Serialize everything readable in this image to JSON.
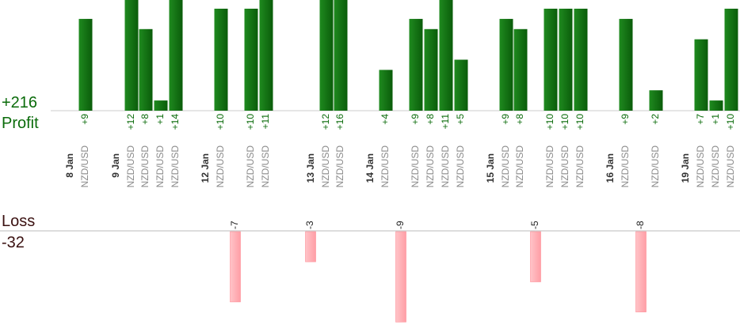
{
  "summary": {
    "profit_total": "+216",
    "profit_label": "Profit",
    "loss_label": "Loss",
    "loss_total": "-32"
  },
  "colors": {
    "profit_bar": "#0f6e0f",
    "profit_text": "#0a6b0a",
    "loss_bar": "#ffb3b8",
    "loss_text": "#3a1010",
    "date_text": "#333333",
    "pair_text": "#8a8a8a",
    "axis": "#bbbbbb"
  },
  "chart_data": {
    "type": "bar",
    "profit_series": {
      "name": "Profit",
      "ylim": [
        0,
        10
      ],
      "trades": [
        {
          "date": "8 Jan",
          "pair": "NZD/USD",
          "value": 9,
          "label": "+9"
        },
        {
          "date": "9 Jan",
          "pair": "NZD/USD",
          "value": 12,
          "label": "+12"
        },
        {
          "date": "",
          "pair": "NZD/USD",
          "value": 8,
          "label": "+8"
        },
        {
          "date": "",
          "pair": "NZD/USD",
          "value": 1,
          "label": "+1"
        },
        {
          "date": "",
          "pair": "NZD/USD",
          "value": 14,
          "label": "+14"
        },
        {
          "date": "12 Jan",
          "pair": "NZD/USD",
          "value": 10,
          "label": "+10"
        },
        {
          "date": "",
          "pair": "NZD/USD",
          "value": 10,
          "label": "+10"
        },
        {
          "date": "",
          "pair": "NZD/USD",
          "value": 11,
          "label": "+11"
        },
        {
          "date": "13 Jan",
          "pair": "NZD/USD",
          "value": 12,
          "label": "+12"
        },
        {
          "date": "",
          "pair": "NZD/USD",
          "value": 16,
          "label": "+16"
        },
        {
          "date": "14 Jan",
          "pair": "NZD/USD",
          "value": 4,
          "label": "+4"
        },
        {
          "date": "",
          "pair": "NZD/USD",
          "value": 9,
          "label": "+9"
        },
        {
          "date": "",
          "pair": "NZD/USD",
          "value": 8,
          "label": "+8"
        },
        {
          "date": "",
          "pair": "NZD/USD",
          "value": 11,
          "label": "+11"
        },
        {
          "date": "",
          "pair": "NZD/USD",
          "value": 5,
          "label": "+5"
        },
        {
          "date": "15 Jan",
          "pair": "NZD/USD",
          "value": 9,
          "label": "+9"
        },
        {
          "date": "",
          "pair": "NZD/USD",
          "value": 8,
          "label": "+8"
        },
        {
          "date": "",
          "pair": "NZD/USD",
          "value": 10,
          "label": "+10"
        },
        {
          "date": "",
          "pair": "NZD/USD",
          "value": 10,
          "label": "+10"
        },
        {
          "date": "",
          "pair": "NZD/USD",
          "value": 10,
          "label": "+10"
        },
        {
          "date": "16 Jan",
          "pair": "NZD/USD",
          "value": 9,
          "label": "+9"
        },
        {
          "date": "",
          "pair": "NZD/USD",
          "value": 2,
          "label": "+2"
        },
        {
          "date": "19 Jan",
          "pair": "NZD/USD",
          "value": 7,
          "label": "+7"
        },
        {
          "date": "",
          "pair": "NZD/USD",
          "value": 1,
          "label": "+1"
        },
        {
          "date": "",
          "pair": "NZD/USD",
          "value": 10,
          "label": "+10"
        }
      ]
    },
    "loss_series": {
      "name": "Loss",
      "ylim": [
        0,
        9
      ],
      "trades": [
        {
          "value": -7,
          "label": "-7"
        },
        {
          "value": -3,
          "label": "-3"
        },
        {
          "value": -9,
          "label": "-9"
        },
        {
          "value": -5,
          "label": "-5"
        },
        {
          "value": -8,
          "label": "-8"
        }
      ]
    }
  }
}
